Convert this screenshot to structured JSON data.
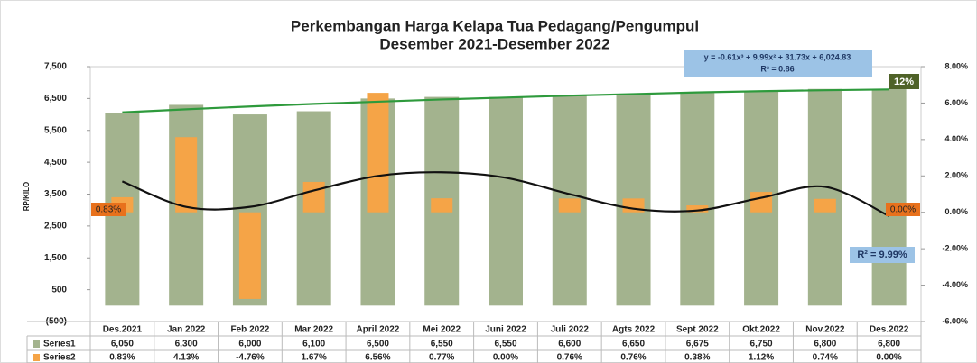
{
  "chart_data": {
    "type": "bar",
    "title": "Perkembangan Harga Kelapa Tua Pedagang/Pengumpul",
    "subtitle": "Desember  2021-Desember 2022",
    "y_axis_label": "RP/KILO",
    "categories": [
      "Des.2021",
      "Jan 2022",
      "Feb 2022",
      "Mar 2022",
      "April 2022",
      "Mei 2022",
      "Juni 2022",
      "Juli 2022",
      "Agts 2022",
      "Sept 2022",
      "Okt.2022",
      "Nov.2022",
      "Des.2022"
    ],
    "series": [
      {
        "name": "Series1",
        "color": "#a3b38e",
        "values": [
          6050,
          6300,
          6000,
          6100,
          6500,
          6550,
          6550,
          6600,
          6650,
          6675,
          6750,
          6800,
          6800
        ],
        "value_labels": [
          "6,050",
          "6,300",
          "6,000",
          "6,100",
          "6,500",
          "6,550",
          "6,550",
          "6,600",
          "6,650",
          "6,675",
          "6,750",
          "6,800",
          "6,800"
        ]
      },
      {
        "name": "Series2",
        "color": "#f5a447",
        "axis": "y2",
        "values": [
          0.83,
          4.13,
          -4.76,
          1.67,
          6.56,
          0.77,
          0.0,
          0.76,
          0.76,
          0.38,
          1.12,
          0.74,
          0.0
        ],
        "value_labels": [
          "0.83%",
          "4.13%",
          "-4.76%",
          "1.67%",
          "6.56%",
          "0.77%",
          "0.00%",
          "0.76%",
          "0.76%",
          "0.38%",
          "1.12%",
          "0.74%",
          "0.00%"
        ],
        "data_label_indices": [
          0,
          12
        ],
        "data_label_color": "#e8711c"
      }
    ],
    "trend_lines": [
      {
        "color": "#2e9a3c",
        "values": [
          6065,
          6160,
          6250,
          6330,
          6400,
          6470,
          6530,
          6590,
          6640,
          6690,
          6730,
          6760,
          6785
        ]
      },
      {
        "color": "#111111",
        "axis": "y2",
        "values": [
          1.7,
          0.3,
          0.3,
          1.2,
          2.0,
          2.2,
          1.9,
          1.0,
          0.2,
          0.1,
          0.8,
          1.4,
          -0.2
        ]
      }
    ],
    "annotations": [
      {
        "text": "y = -0.61x³ + 9.99x² + 31.73x + 6,024.83",
        "text2": "R² = 0.86",
        "style": "equation"
      },
      {
        "text": "12%",
        "style": "badge"
      },
      {
        "text": "R² = 9.99%",
        "style": "r2"
      }
    ],
    "ylim": [
      -500,
      7500
    ],
    "yticks": [
      {
        "value": 7500,
        "label": "7,500"
      },
      {
        "value": 6500,
        "label": "6,500"
      },
      {
        "value": 5500,
        "label": "5,500"
      },
      {
        "value": 4500,
        "label": "4,500"
      },
      {
        "value": 3500,
        "label": "3,500"
      },
      {
        "value": 2500,
        "label": "2,500"
      },
      {
        "value": 1500,
        "label": "1,500"
      },
      {
        "value": 500,
        "label": "500"
      },
      {
        "value": -500,
        "label": "(500)"
      }
    ],
    "y2lim": [
      -6,
      8
    ],
    "y2ticks": [
      {
        "value": 8,
        "label": "8.00%"
      },
      {
        "value": 6,
        "label": "6.00%"
      },
      {
        "value": 4,
        "label": "4.00%"
      },
      {
        "value": 2,
        "label": "2.00%"
      },
      {
        "value": 0,
        "label": "0.00%"
      },
      {
        "value": -2,
        "label": "-2.00%"
      },
      {
        "value": -4,
        "label": "-4.00%"
      },
      {
        "value": -6,
        "label": "-6.00%"
      }
    ],
    "grid": false
  }
}
